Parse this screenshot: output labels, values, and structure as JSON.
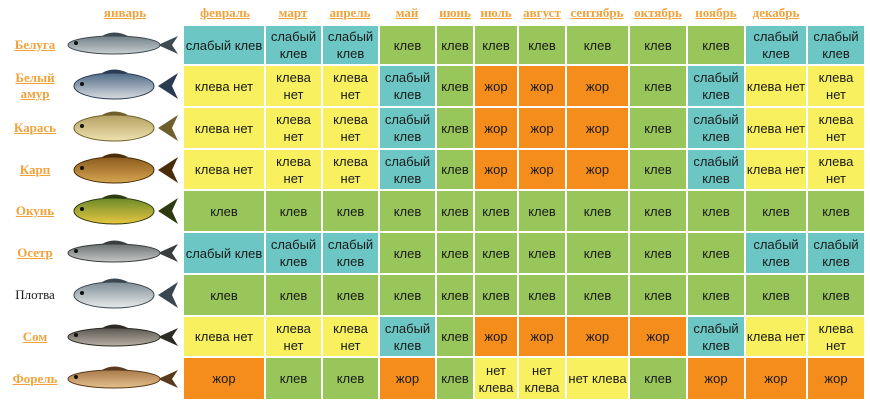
{
  "months": [
    "январь",
    "февраль",
    "март",
    "апрель",
    "май",
    "июнь",
    "июль",
    "август",
    "сентябрь",
    "октябрь",
    "ноябрь",
    "декабрь"
  ],
  "legend_colors": {
    "клев": "#98c65a",
    "клева нет": "#f8f05e",
    "слабый клев": "#6cc6c4",
    "жор": "#f58d1d"
  },
  "fish": [
    {
      "name": "Белуга",
      "linked": true,
      "icon": "beluga-fish-icon",
      "cells": [
        [
          "слабый клев",
          "t"
        ],
        [
          "слабый клев",
          "t"
        ],
        [
          "слабый клев",
          "t"
        ],
        [
          "клев",
          "g"
        ],
        [
          "клев",
          "g"
        ],
        [
          "клев",
          "g"
        ],
        [
          "клев",
          "g"
        ],
        [
          "клев",
          "g"
        ],
        [
          "клев",
          "g"
        ],
        [
          "клев",
          "g"
        ],
        [
          "слабый клев",
          "t"
        ],
        [
          "слабый клев",
          "t"
        ]
      ]
    },
    {
      "name": "Белый амур",
      "linked": true,
      "icon": "grass-carp-fish-icon",
      "cells": [
        [
          "клева нет",
          "y"
        ],
        [
          "клева нет",
          "y"
        ],
        [
          "клева нет",
          "y"
        ],
        [
          "слабый клев",
          "t"
        ],
        [
          "клев",
          "g"
        ],
        [
          "жор",
          "o"
        ],
        [
          "жор",
          "o"
        ],
        [
          "жор",
          "o"
        ],
        [
          "клев",
          "g"
        ],
        [
          "слабый клев",
          "t"
        ],
        [
          "клева нет",
          "y"
        ],
        [
          "клева нет",
          "y"
        ]
      ]
    },
    {
      "name": "Карась",
      "linked": true,
      "icon": "crucian-fish-icon",
      "cells": [
        [
          "клева нет",
          "y"
        ],
        [
          "клева нет",
          "y"
        ],
        [
          "клева нет",
          "y"
        ],
        [
          "слабый клев",
          "t"
        ],
        [
          "клев",
          "g"
        ],
        [
          "жор",
          "o"
        ],
        [
          "жор",
          "o"
        ],
        [
          "жор",
          "o"
        ],
        [
          "клев",
          "g"
        ],
        [
          "слабый клев",
          "t"
        ],
        [
          "клева нет",
          "y"
        ],
        [
          "клева нет",
          "y"
        ]
      ]
    },
    {
      "name": "Карп",
      "linked": true,
      "icon": "carp-fish-icon",
      "cells": [
        [
          "клева нет",
          "y"
        ],
        [
          "клева нет",
          "y"
        ],
        [
          "клева нет",
          "y"
        ],
        [
          "слабый клев",
          "t"
        ],
        [
          "клев",
          "g"
        ],
        [
          "жор",
          "o"
        ],
        [
          "жор",
          "o"
        ],
        [
          "жор",
          "o"
        ],
        [
          "клев",
          "g"
        ],
        [
          "слабый клев",
          "t"
        ],
        [
          "клева нет",
          "y"
        ],
        [
          "клева нет",
          "y"
        ]
      ]
    },
    {
      "name": "Окунь",
      "linked": true,
      "icon": "perch-fish-icon",
      "cells": [
        [
          "клев",
          "g"
        ],
        [
          "клев",
          "g"
        ],
        [
          "клев",
          "g"
        ],
        [
          "клев",
          "g"
        ],
        [
          "клев",
          "g"
        ],
        [
          "клев",
          "g"
        ],
        [
          "клев",
          "g"
        ],
        [
          "клев",
          "g"
        ],
        [
          "клев",
          "g"
        ],
        [
          "клев",
          "g"
        ],
        [
          "клев",
          "g"
        ],
        [
          "клев",
          "g"
        ]
      ]
    },
    {
      "name": "Осетр",
      "linked": true,
      "icon": "sturgeon-fish-icon",
      "cells": [
        [
          "слабый клев",
          "t"
        ],
        [
          "слабый клев",
          "t"
        ],
        [
          "слабый клев",
          "t"
        ],
        [
          "клев",
          "g"
        ],
        [
          "клев",
          "g"
        ],
        [
          "клев",
          "g"
        ],
        [
          "клев",
          "g"
        ],
        [
          "клев",
          "g"
        ],
        [
          "клев",
          "g"
        ],
        [
          "клев",
          "g"
        ],
        [
          "слабый клев",
          "t"
        ],
        [
          "слабый клев",
          "t"
        ]
      ]
    },
    {
      "name": "Плотва",
      "linked": false,
      "icon": "roach-fish-icon",
      "cells": [
        [
          "клев",
          "g"
        ],
        [
          "клев",
          "g"
        ],
        [
          "клев",
          "g"
        ],
        [
          "клев",
          "g"
        ],
        [
          "клев",
          "g"
        ],
        [
          "клев",
          "g"
        ],
        [
          "клев",
          "g"
        ],
        [
          "клев",
          "g"
        ],
        [
          "клев",
          "g"
        ],
        [
          "клев",
          "g"
        ],
        [
          "клев",
          "g"
        ],
        [
          "клев",
          "g"
        ]
      ]
    },
    {
      "name": "Сом",
      "linked": true,
      "icon": "catfish-fish-icon",
      "cells": [
        [
          "клева нет",
          "y"
        ],
        [
          "клева нет",
          "y"
        ],
        [
          "клева нет",
          "y"
        ],
        [
          "слабый клев",
          "t"
        ],
        [
          "клев",
          "g"
        ],
        [
          "жор",
          "o"
        ],
        [
          "жор",
          "o"
        ],
        [
          "жор",
          "o"
        ],
        [
          "жор",
          "o"
        ],
        [
          "слабый клев",
          "t"
        ],
        [
          "клева нет",
          "y"
        ],
        [
          "клева нет",
          "y"
        ]
      ]
    },
    {
      "name": "Форель",
      "linked": true,
      "icon": "trout-fish-icon",
      "cells": [
        [
          "жор",
          "o"
        ],
        [
          "клев",
          "g"
        ],
        [
          "клев",
          "g"
        ],
        [
          "жор",
          "o"
        ],
        [
          "клев",
          "g"
        ],
        [
          "нет клева",
          "y"
        ],
        [
          "нет клева",
          "y"
        ],
        [
          "нет клева",
          "y"
        ],
        [
          "клев",
          "g"
        ],
        [
          "жор",
          "o"
        ],
        [
          "жор",
          "o"
        ],
        [
          "жор",
          "o"
        ]
      ]
    }
  ]
}
